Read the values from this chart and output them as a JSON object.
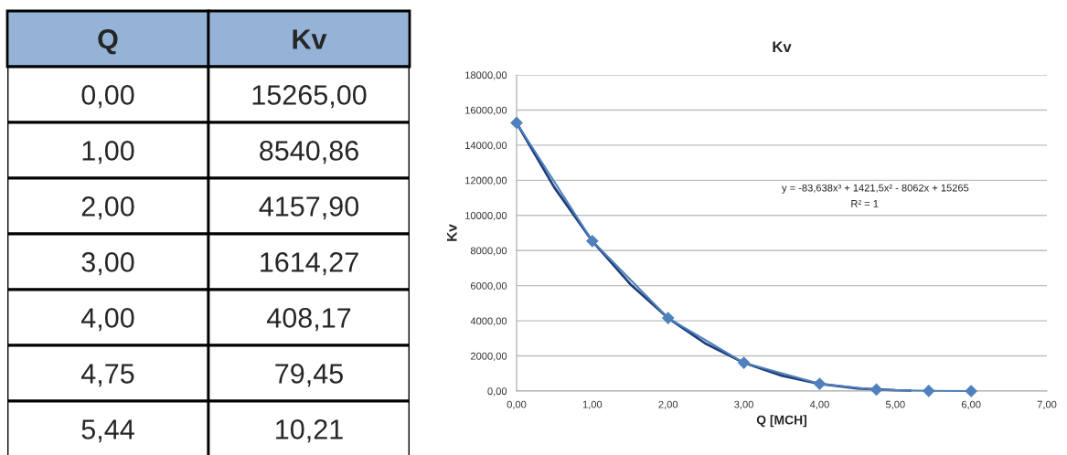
{
  "chart_data": [
    {
      "type": "other",
      "annotations": [
        "Q",
        "Kv",
        "0,00",
        "15265,00",
        "1,00",
        "8540,86",
        "2,00",
        "4157,90",
        "3,00",
        "1614,27",
        "4,00",
        "408,17",
        "4,75",
        "79,45",
        "5,44",
        "10,21"
      ]
    },
    {
      "type": "line",
      "title": "Kv",
      "xlabel": "Q [MCH]",
      "ylabel": "Kv",
      "x": [
        0,
        1,
        2,
        3,
        4,
        4.75,
        5.44,
        6
      ],
      "series": [
        {
          "color": "#4f81bd",
          "marker": "diamond",
          "values": [
            15270,
            8540,
            4160,
            1610,
            410,
            80,
            10,
            0
          ]
        },
        {
          "color": "#1f3d7a",
          "marker": "none",
          "x": [
            0,
            0.5,
            1,
            1.5,
            2,
            2.5,
            3,
            3.5,
            4,
            4.5,
            5,
            5.2
          ],
          "values": [
            15270,
            11580,
            8540,
            6090,
            4160,
            2690,
            1610,
            880,
            410,
            150,
            40,
            20
          ]
        }
      ],
      "xlim": [
        0,
        7
      ],
      "xticks": [
        {
          "value": 0,
          "label": "0,00"
        },
        {
          "value": 1,
          "label": "1,00"
        },
        {
          "value": 2,
          "label": "2,00"
        },
        {
          "value": 3,
          "label": "3,00"
        },
        {
          "value": 4,
          "label": "4,00"
        },
        {
          "value": 5,
          "label": "5,00"
        },
        {
          "value": 6,
          "label": "6,00"
        },
        {
          "value": 7,
          "label": "7,00"
        }
      ],
      "ylim": [
        0,
        18000
      ],
      "yticks": [
        {
          "value": 0,
          "label": "0,00"
        },
        {
          "value": 2000,
          "label": "2000,00"
        },
        {
          "value": 4000,
          "label": "4000,00"
        },
        {
          "value": 6000,
          "label": "6000,00"
        },
        {
          "value": 8000,
          "label": "8000,00"
        },
        {
          "value": 10000,
          "label": "10000,00"
        },
        {
          "value": 12000,
          "label": "12000,00"
        },
        {
          "value": 14000,
          "label": "14000,00"
        },
        {
          "value": 16000,
          "label": "16000,00"
        },
        {
          "value": 18000,
          "label": "18000,00"
        }
      ],
      "grid": "y",
      "annotations": [
        "y = -83,638x³ + 1421,5x² - 8062x + 15265",
        "R² = 1"
      ]
    }
  ]
}
